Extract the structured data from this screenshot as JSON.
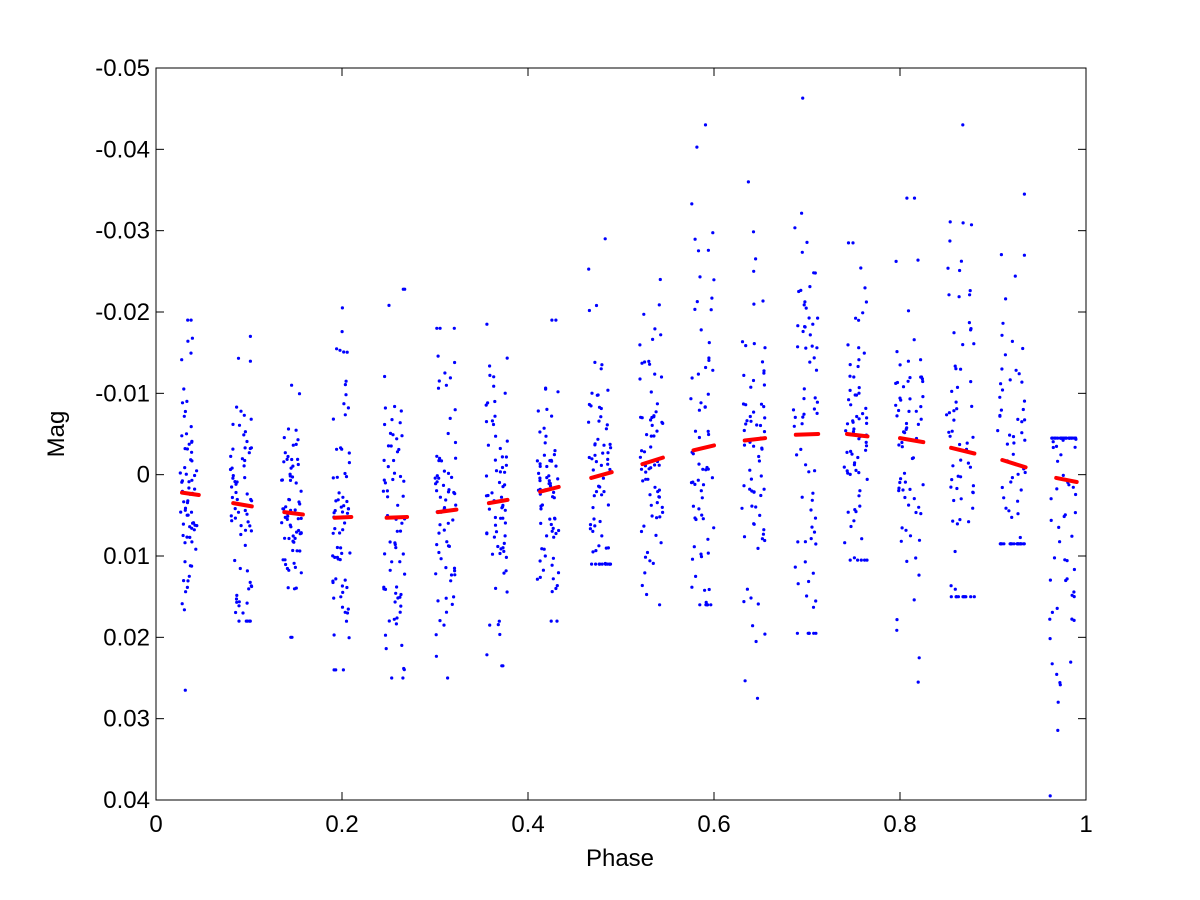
{
  "chart_data": {
    "type": "scatter",
    "title": "",
    "xlabel": "Phase",
    "ylabel": "Mag",
    "xlim": [
      0,
      1
    ],
    "ylim": [
      -0.05,
      0.04
    ],
    "y_reversed": true,
    "grid": false,
    "legend": "none",
    "x_ticks": [
      0,
      0.2,
      0.4,
      0.6,
      0.8,
      1
    ],
    "x_tick_labels": [
      "0",
      "0.2",
      "0.4",
      "0.6",
      "0.8",
      "1"
    ],
    "y_ticks": [
      -0.05,
      -0.04,
      -0.03,
      -0.02,
      -0.01,
      0,
      0.01,
      0.02,
      0.03,
      0.04
    ],
    "y_tick_labels": [
      "-0.05",
      "-0.04",
      "-0.03",
      "-0.02",
      "-0.01",
      "0",
      "0.01",
      "0.02",
      "0.03",
      "0.04"
    ],
    "colors": {
      "points": "#0000ff",
      "fit": "#ff0000",
      "axes": "#000000",
      "background": "#ffffff"
    },
    "series": [
      {
        "kind": "points",
        "clusters": [
          {
            "x": [
              0.026,
              0.044
            ],
            "y_range": [
              -0.019,
              0.0265
            ]
          },
          {
            "x": [
              0.08,
              0.103
            ],
            "y_range": [
              -0.017,
              0.018
            ]
          },
          {
            "x": [
              0.135,
              0.157
            ],
            "y_range": [
              -0.011,
              0.02
            ]
          },
          {
            "x": [
              0.19,
              0.21
            ],
            "y_range": [
              -0.0205,
              0.024
            ]
          },
          {
            "x": [
              0.244,
              0.268
            ],
            "y_range": [
              -0.0228,
              0.025
            ]
          },
          {
            "x": [
              0.3,
              0.323
            ],
            "y_range": [
              -0.018,
              0.025
            ]
          },
          {
            "x": [
              0.355,
              0.378
            ],
            "y_range": [
              -0.0185,
              0.0235
            ]
          },
          {
            "x": [
              0.41,
              0.433
            ],
            "y_range": [
              -0.019,
              0.018
            ]
          },
          {
            "x": [
              0.465,
              0.49
            ],
            "y_range": [
              -0.029,
              0.011
            ]
          },
          {
            "x": [
              0.52,
              0.545
            ],
            "y_range": [
              -0.024,
              0.016
            ]
          },
          {
            "x": [
              0.575,
              0.6
            ],
            "y_range": [
              -0.043,
              0.016
            ]
          },
          {
            "x": [
              0.63,
              0.655
            ],
            "y_range": [
              -0.036,
              0.0275
            ]
          },
          {
            "x": [
              0.685,
              0.712
            ],
            "y_range": [
              -0.0463,
              0.0195
            ]
          },
          {
            "x": [
              0.74,
              0.765
            ],
            "y_range": [
              -0.0285,
              0.0105
            ]
          },
          {
            "x": [
              0.795,
              0.825
            ],
            "y_range": [
              -0.034,
              0.0255
            ]
          },
          {
            "x": [
              0.85,
              0.88
            ],
            "y_range": [
              -0.043,
              0.015
            ]
          },
          {
            "x": [
              0.905,
              0.935
            ],
            "y_range": [
              -0.0345,
              0.0085
            ]
          },
          {
            "x": [
              0.96,
              0.99
            ],
            "y_range": [
              -0.0045,
              0.0395
            ]
          }
        ]
      },
      {
        "kind": "fit",
        "segments": [
          {
            "x": [
              0.028,
              0.046
            ],
            "y": [
              0.0022,
              0.0025
            ]
          },
          {
            "x": [
              0.083,
              0.103
            ],
            "y": [
              0.0035,
              0.0039
            ]
          },
          {
            "x": [
              0.138,
              0.158
            ],
            "y": [
              0.0046,
              0.0049
            ]
          },
          {
            "x": [
              0.192,
              0.21
            ],
            "y": [
              0.0053,
              0.0052
            ]
          },
          {
            "x": [
              0.248,
              0.27
            ],
            "y": [
              0.0053,
              0.0052
            ]
          },
          {
            "x": [
              0.303,
              0.323
            ],
            "y": [
              0.0046,
              0.0043
            ]
          },
          {
            "x": [
              0.358,
              0.378
            ],
            "y": [
              0.0035,
              0.0031
            ]
          },
          {
            "x": [
              0.413,
              0.433
            ],
            "y": [
              0.0021,
              0.0015
            ]
          },
          {
            "x": [
              0.468,
              0.49
            ],
            "y": [
              0.0004,
              -0.0003
            ]
          },
          {
            "x": [
              0.523,
              0.545
            ],
            "y": [
              -0.0013,
              -0.0021
            ]
          },
          {
            "x": [
              0.578,
              0.6
            ],
            "y": [
              -0.003,
              -0.0036
            ]
          },
          {
            "x": [
              0.633,
              0.655
            ],
            "y": [
              -0.0042,
              -0.0045
            ]
          },
          {
            "x": [
              0.688,
              0.712
            ],
            "y": [
              -0.0049,
              -0.005
            ]
          },
          {
            "x": [
              0.743,
              0.765
            ],
            "y": [
              -0.005,
              -0.0047
            ]
          },
          {
            "x": [
              0.8,
              0.825
            ],
            "y": [
              -0.0045,
              -0.004
            ]
          },
          {
            "x": [
              0.855,
              0.88
            ],
            "y": [
              -0.0033,
              -0.0026
            ]
          },
          {
            "x": [
              0.91,
              0.935
            ],
            "y": [
              -0.0018,
              -0.0009
            ]
          },
          {
            "x": [
              0.968,
              0.99
            ],
            "y": [
              0.0004,
              0.0009
            ]
          }
        ]
      }
    ]
  }
}
